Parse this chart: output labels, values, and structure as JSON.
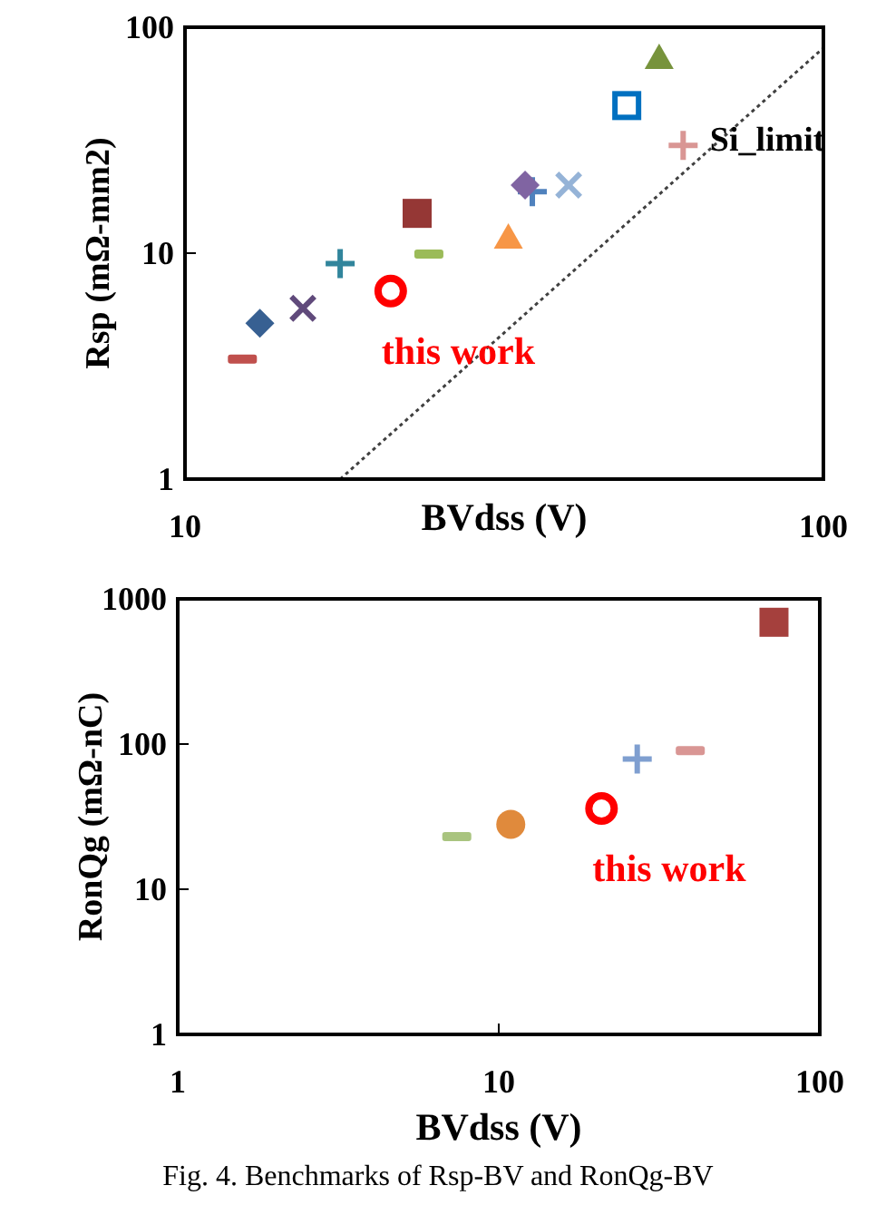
{
  "chart_data": [
    {
      "type": "scatter",
      "xlabel": "BVdss (V)",
      "ylabel": "Rsp (mΩ-mm2)",
      "log": "xy",
      "grid": false,
      "legend": false,
      "xlim": [
        10,
        100
      ],
      "xticks": [
        10,
        100
      ],
      "ylim": [
        1,
        100
      ],
      "yticks": [
        1,
        10,
        100
      ],
      "series": [
        {
          "color": "#c0504d",
          "x": [
            12.3
          ],
          "values": [
            3.4
          ]
        },
        {
          "color": "#376092",
          "marker": "diamond",
          "x": [
            13.1
          ],
          "values": [
            4.9
          ]
        },
        {
          "color": "#604a7b",
          "marker": "x",
          "x": [
            15.3
          ],
          "values": [
            5.7
          ]
        },
        {
          "color": "#31859c",
          "marker": "cross",
          "x": [
            17.5
          ],
          "values": [
            9
          ]
        },
        {
          "color": "#ff0000",
          "marker": "circle",
          "x": [
            21
          ],
          "values": [
            6.8
          ]
        },
        {
          "color": "#953735",
          "marker": "square",
          "x": [
            23.1
          ],
          "values": [
            15
          ]
        },
        {
          "color": "#9bbb59",
          "x": [
            24.1
          ],
          "values": [
            9.9
          ]
        },
        {
          "color": "#f79646",
          "marker": "triangle",
          "x": [
            32.1
          ],
          "values": [
            11.7
          ]
        },
        {
          "color": "#4f81bd",
          "marker": "cross",
          "x": [
            35
          ],
          "values": [
            18.7
          ]
        },
        {
          "color": "#8064a2",
          "marker": "diamond",
          "x": [
            34.1
          ],
          "values": [
            20
          ]
        },
        {
          "color": "#95b3d7",
          "marker": "x",
          "x": [
            39.9
          ],
          "values": [
            20
          ]
        },
        {
          "color": "#0070c0",
          "marker": "square-open",
          "x": [
            49.2
          ],
          "values": [
            45
          ]
        },
        {
          "color": "#77933c",
          "marker": "triangle",
          "x": [
            55.3
          ],
          "values": [
            73
          ]
        },
        {
          "color": "#d99694",
          "marker": "cross",
          "x": [
            60.3
          ],
          "values": [
            30
          ]
        },
        {
          "type": "line",
          "name": "Si_limit",
          "color": "#404040",
          "line_style": "dotted",
          "marker": "none",
          "x": [
            17.5,
            100
          ],
          "values": [
            1,
            81
          ]
        }
      ],
      "annotations": [
        {
          "text": "this work",
          "x": 21,
          "y": 6.8
        }
      ]
    },
    {
      "type": "scatter",
      "xlabel": "BVdss (V)",
      "ylabel": "RonQg (mΩ-nC)",
      "log": "xy",
      "grid": false,
      "legend": false,
      "xlim": [
        1,
        100
      ],
      "xticks": [
        1,
        10,
        100
      ],
      "ylim": [
        1,
        1000
      ],
      "yticks": [
        1,
        10,
        100,
        1000
      ],
      "series": [
        {
          "color": "#a9c47f",
          "x": [
            7.4
          ],
          "values": [
            23
          ]
        },
        {
          "color": "#e08a3c",
          "marker": "circle",
          "x": [
            10.9
          ],
          "values": [
            28
          ]
        },
        {
          "color": "#ff0000",
          "marker": "circle",
          "x": [
            20.9
          ],
          "values": [
            36
          ]
        },
        {
          "color": "#7f9fd0",
          "marker": "cross",
          "x": [
            27
          ],
          "values": [
            79
          ]
        },
        {
          "color": "#d99694",
          "x": [
            39.5
          ],
          "values": [
            90
          ]
        },
        {
          "color": "#a5403d",
          "marker": "square",
          "x": [
            72
          ],
          "values": [
            690
          ]
        }
      ],
      "annotations": [
        {
          "text": "this work",
          "x": 20.9,
          "y": 36
        },
        "Fig. 4. Benchmarks of Rsp-BV and RonQg-BV"
      ]
    }
  ]
}
